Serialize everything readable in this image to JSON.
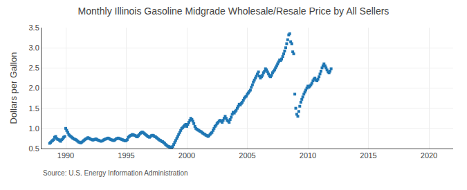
{
  "chart_data": {
    "type": "scatter",
    "title": "Monthly Illinois Gasoline Midgrade Wholesale/Resale Price by All Sellers",
    "ylabel": "Dollars per Gallon",
    "annotations": [
      "Source: U.S. Energy Information Administration"
    ],
    "marker": "square",
    "grid": true,
    "xlim": [
      1988,
      2022
    ],
    "ylim": [
      0.5,
      3.5
    ],
    "xticks": [
      1990,
      1995,
      2000,
      2005,
      2010,
      2015,
      2020
    ],
    "yticks": [
      0.5,
      {
        "value": 1.0,
        "label": "1.0"
      },
      1.5,
      {
        "value": 2.0,
        "label": "2.0"
      },
      2.5,
      {
        "value": 3.0,
        "label": "3.0"
      },
      3.5
    ],
    "x": [
      1988.67,
      1988.75,
      1988.83,
      1988.92,
      1989.0,
      1989.08,
      1989.17,
      1989.25,
      1989.33,
      1989.42,
      1989.5,
      1989.58,
      1989.67,
      1989.75,
      1989.83,
      1989.92,
      1990.0,
      1990.08,
      1990.17,
      1990.25,
      1990.33,
      1990.42,
      1990.5,
      1990.58,
      1990.67,
      1990.75,
      1990.83,
      1990.92,
      1991.0,
      1991.08,
      1991.17,
      1991.25,
      1991.33,
      1991.42,
      1991.5,
      1991.58,
      1991.67,
      1991.75,
      1991.83,
      1991.92,
      1992.0,
      1992.08,
      1992.17,
      1992.25,
      1992.33,
      1992.42,
      1992.5,
      1992.58,
      1992.67,
      1992.75,
      1992.83,
      1992.92,
      1993.0,
      1993.08,
      1993.17,
      1993.25,
      1993.33,
      1993.42,
      1993.5,
      1993.58,
      1993.67,
      1993.75,
      1993.83,
      1993.92,
      1994.0,
      1994.08,
      1994.17,
      1994.25,
      1994.33,
      1994.42,
      1994.5,
      1994.58,
      1994.67,
      1994.75,
      1994.83,
      1994.92,
      1995.0,
      1995.08,
      1995.17,
      1995.25,
      1995.33,
      1995.42,
      1995.5,
      1995.58,
      1995.67,
      1995.75,
      1995.83,
      1995.92,
      1996.0,
      1996.08,
      1996.17,
      1996.25,
      1996.33,
      1996.42,
      1996.5,
      1996.58,
      1996.67,
      1996.75,
      1996.83,
      1996.92,
      1997.0,
      1997.08,
      1997.17,
      1997.25,
      1997.33,
      1997.42,
      1997.5,
      1997.58,
      1997.67,
      1997.75,
      1997.83,
      1997.92,
      1998.0,
      1998.08,
      1998.17,
      1998.25,
      1998.33,
      1998.42,
      1998.5,
      1998.58,
      1998.67,
      1998.75,
      1998.83,
      1998.92,
      1999.0,
      1999.08,
      1999.17,
      1999.25,
      1999.33,
      1999.42,
      1999.5,
      1999.58,
      1999.67,
      1999.75,
      1999.83,
      1999.92,
      2000.0,
      2000.08,
      2000.17,
      2000.25,
      2000.33,
      2000.42,
      2000.5,
      2000.58,
      2000.67,
      2000.75,
      2000.83,
      2000.92,
      2001.0,
      2001.08,
      2001.17,
      2001.25,
      2001.33,
      2001.42,
      2001.5,
      2001.58,
      2001.67,
      2001.75,
      2001.83,
      2001.92,
      2002.0,
      2002.08,
      2002.17,
      2002.25,
      2002.33,
      2002.42,
      2002.5,
      2002.58,
      2002.67,
      2002.75,
      2002.83,
      2002.92,
      2003.0,
      2003.08,
      2003.17,
      2003.25,
      2003.33,
      2003.42,
      2003.5,
      2003.58,
      2003.67,
      2003.75,
      2003.83,
      2003.92,
      2004.0,
      2004.08,
      2004.17,
      2004.25,
      2004.33,
      2004.42,
      2004.5,
      2004.58,
      2004.67,
      2004.75,
      2004.83,
      2004.92,
      2005.0,
      2005.08,
      2005.17,
      2005.25,
      2005.33,
      2005.42,
      2005.5,
      2005.58,
      2005.67,
      2005.75,
      2005.83,
      2005.92,
      2006.0,
      2006.08,
      2006.17,
      2006.25,
      2006.33,
      2006.42,
      2006.5,
      2006.58,
      2006.67,
      2006.75,
      2006.83,
      2006.92,
      2007.0,
      2007.08,
      2007.17,
      2007.25,
      2007.33,
      2007.42,
      2007.5,
      2007.58,
      2007.67,
      2007.75,
      2007.83,
      2007.92,
      2008.0,
      2008.08,
      2008.17,
      2008.25,
      2008.33,
      2008.42,
      2008.5,
      2008.58,
      2008.67,
      2008.75,
      2008.83,
      2008.92,
      2009.0,
      2009.08,
      2009.17,
      2009.25,
      2009.33,
      2009.42,
      2009.5,
      2009.58,
      2009.67,
      2009.75,
      2009.83,
      2009.92,
      2010.0,
      2010.08,
      2010.17,
      2010.25,
      2010.33,
      2010.42,
      2010.5,
      2010.58,
      2010.67,
      2010.75,
      2010.83,
      2010.92,
      2011.0,
      2011.08,
      2011.17,
      2011.25,
      2011.33,
      2011.42,
      2011.5,
      2011.58,
      2011.67,
      2011.75,
      2011.83,
      2011.92
    ],
    "values": [
      0.63,
      0.65,
      0.68,
      0.7,
      0.72,
      0.78,
      0.8,
      0.75,
      0.73,
      0.72,
      0.7,
      0.68,
      0.72,
      0.74,
      0.78,
      0.8,
      1.0,
      0.95,
      0.9,
      0.85,
      0.82,
      0.8,
      0.78,
      0.76,
      0.74,
      0.73,
      0.72,
      0.7,
      0.68,
      0.66,
      0.65,
      0.64,
      0.66,
      0.68,
      0.7,
      0.72,
      0.74,
      0.75,
      0.77,
      0.76,
      0.74,
      0.73,
      0.72,
      0.71,
      0.72,
      0.73,
      0.74,
      0.72,
      0.71,
      0.7,
      0.69,
      0.68,
      0.69,
      0.7,
      0.72,
      0.73,
      0.74,
      0.75,
      0.76,
      0.75,
      0.73,
      0.72,
      0.71,
      0.7,
      0.7,
      0.72,
      0.74,
      0.75,
      0.76,
      0.75,
      0.74,
      0.73,
      0.72,
      0.71,
      0.7,
      0.69,
      0.7,
      0.72,
      0.78,
      0.8,
      0.82,
      0.83,
      0.85,
      0.84,
      0.83,
      0.82,
      0.8,
      0.79,
      0.82,
      0.85,
      0.88,
      0.9,
      0.91,
      0.89,
      0.87,
      0.85,
      0.83,
      0.81,
      0.79,
      0.78,
      0.8,
      0.82,
      0.83,
      0.82,
      0.8,
      0.79,
      0.77,
      0.75,
      0.73,
      0.71,
      0.7,
      0.68,
      0.67,
      0.65,
      0.63,
      0.6,
      0.58,
      0.56,
      0.55,
      0.54,
      0.53,
      0.52,
      0.55,
      0.6,
      0.65,
      0.7,
      0.75,
      0.8,
      0.85,
      0.9,
      0.95,
      1.0,
      1.02,
      1.05,
      1.08,
      1.1,
      1.05,
      1.1,
      1.15,
      1.2,
      1.25,
      1.22,
      1.18,
      1.12,
      1.05,
      1.0,
      0.98,
      0.96,
      0.95,
      0.93,
      0.92,
      0.9,
      0.88,
      0.86,
      0.85,
      0.83,
      0.82,
      0.8,
      0.82,
      0.85,
      0.88,
      0.9,
      0.95,
      1.0,
      1.05,
      1.08,
      1.12,
      1.15,
      1.18,
      1.2,
      1.18,
      1.15,
      1.2,
      1.25,
      1.3,
      1.25,
      1.2,
      1.18,
      1.15,
      1.22,
      1.28,
      1.35,
      1.4,
      1.38,
      1.42,
      1.45,
      1.5,
      1.55,
      1.6,
      1.58,
      1.62,
      1.65,
      1.7,
      1.75,
      1.78,
      1.8,
      1.85,
      1.88,
      1.92,
      1.95,
      2.02,
      2.08,
      2.15,
      2.2,
      2.25,
      2.3,
      2.35,
      2.4,
      2.3,
      2.25,
      2.28,
      2.32,
      2.38,
      2.42,
      2.48,
      2.45,
      2.4,
      2.35,
      2.3,
      2.28,
      2.32,
      2.38,
      2.42,
      2.45,
      2.5,
      2.55,
      2.6,
      2.65,
      2.7,
      2.68,
      2.72,
      2.78,
      2.85,
      2.92,
      3.0,
      3.1,
      3.2,
      3.32,
      3.35,
      3.15,
      3.1,
      2.9,
      2.85,
      1.85,
      1.5,
      1.35,
      1.3,
      1.42,
      1.55,
      1.65,
      1.72,
      1.78,
      1.85,
      1.9,
      1.95,
      2.0,
      2.05,
      2.02,
      2.05,
      2.08,
      2.12,
      2.18,
      2.22,
      2.25,
      2.2,
      2.18,
      2.22,
      2.28,
      2.35,
      2.42,
      2.5,
      2.55,
      2.6,
      2.55,
      2.5,
      2.45,
      2.4,
      2.38,
      2.42,
      2.48
    ]
  }
}
